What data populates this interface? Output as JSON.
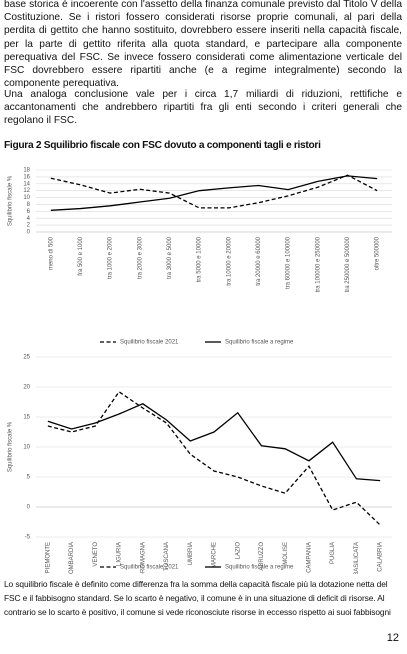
{
  "paragraphs": [
    "base storica è incoerente con l'assetto della finanza comunale previsto dal Titolo V della Costituzione. Se i ristori fossero considerati risorse proprie comunali, al pari della perdita di gettito che hanno sostituito, dovrebbero essere inseriti nella capacità fiscale, per la parte di gettito riferita alla quota standard, e partecipare alla componente perequativa del FSC. Se invece fossero considerati come alimentazione verticale del FSC dovrebbero essere ripartiti anche (e a regime integralmente) secondo la componente perequativa.",
    "Una analoga conclusione vale per i circa 1,7 miliardi di riduzioni, rettifiche e accantonamenti che andrebbero ripartiti fra gli enti secondo i criteri generali che regolano il FSC."
  ],
  "figure_title": "Figura 2 Squilibrio fiscale con FSC dovuto a componenti tagli e ristori",
  "chart_data": [
    {
      "type": "line",
      "y_label": "Squilibrio fiscale %",
      "categories": [
        "meno di 500",
        "fra 500 e 1000",
        "tra 1000 e 2000",
        "tra 2000 e 3000",
        "tra 3000 e 5000",
        "tra 5000 e 10000",
        "tra 10000 e 20000",
        "tra 20000 e 60000",
        "tra 60000 e 100000",
        "tra 100000 e 250000",
        "tra 250000 e 500000",
        "oltre 500000"
      ],
      "series": [
        {
          "name": "Squilibrio fiscale 2021",
          "color": "#000000",
          "style": "dashed",
          "values": [
            15.6,
            13.7,
            11.3,
            12.4,
            11.3,
            7.0,
            7.0,
            8.5,
            10.5,
            13.0,
            16.5,
            12.0
          ]
        },
        {
          "name": "Squilibrio fiscale a regime",
          "color": "#000000",
          "style": "solid",
          "values": [
            6.3,
            6.8,
            7.6,
            8.7,
            9.8,
            12.0,
            12.8,
            13.5,
            12.3,
            14.7,
            16.3,
            15.5
          ]
        }
      ],
      "ylim": [
        0,
        18
      ],
      "yticks": [
        0,
        2,
        4,
        6,
        8,
        10,
        12,
        14,
        16,
        18
      ],
      "grid": true
    },
    {
      "type": "line",
      "y_label": "Squilibrio fiscale %",
      "categories": [
        "PIEMONTE",
        "LOMBARDIA",
        "VENETO",
        "LIGURIA",
        "EMILIA-ROMAGNA",
        "TOSCANA",
        "UMBRIA",
        "MARCHE",
        "LAZIO",
        "ABRUZZO",
        "MOLISE",
        "CAMPANIA",
        "PUGLIA",
        "BASILICATA",
        "CALABRIA"
      ],
      "series": [
        {
          "name": "Squilibrio fiscale 2021",
          "color": "#000000",
          "style": "dashed",
          "values": [
            13.5,
            12.5,
            13.5,
            19.2,
            16.5,
            14.0,
            8.8,
            6.0,
            5.0,
            3.5,
            2.3,
            6.8,
            -0.5,
            0.8,
            -3.0
          ]
        },
        {
          "name": "Squilibrio fiscale a regime",
          "color": "#000000",
          "style": "solid",
          "values": [
            14.3,
            13.0,
            14.0,
            15.5,
            17.2,
            14.5,
            11.0,
            12.5,
            15.7,
            10.2,
            9.7,
            7.7,
            10.8,
            4.7,
            4.4
          ]
        }
      ],
      "ylim": [
        -5,
        25
      ],
      "yticks": [
        -5,
        0,
        5,
        10,
        15,
        20,
        25
      ],
      "grid": true
    }
  ],
  "caption": "Lo squilibrio fiscale è definito come differenza fra la somma della capacità fiscale più la dotazione netta del FSC e il fabbisogno standard. Se lo scarto è negativo, il comune è in una situazione di deficit di risorse. Al contrario se lo scarto è positivo, il comune si vede riconosciute risorse in eccesso rispetto ai suoi fabbisogni",
  "page_number": "12"
}
